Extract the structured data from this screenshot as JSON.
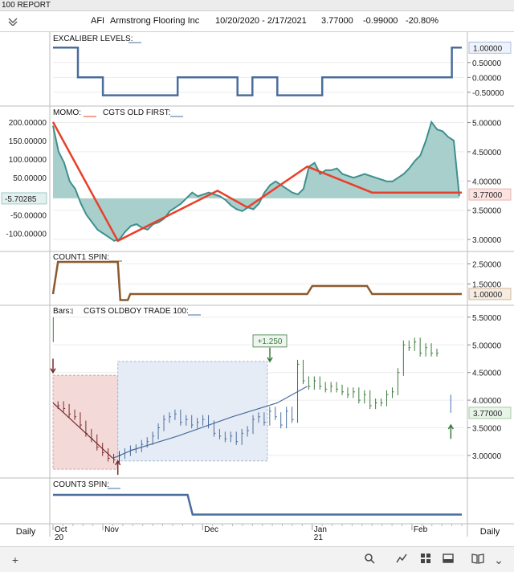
{
  "window": {
    "title": "100  REPORT"
  },
  "header": {
    "symbol": "AFI",
    "company": "Armstrong Flooring Inc",
    "date_range": "10/20/2020 - 2/17/2021",
    "price": "3.77000",
    "change": "-0.99000",
    "change_pct": "-20.80%"
  },
  "footer": {
    "left_label": "Daily",
    "right_label": "Daily",
    "icons": [
      "plus-icon",
      "search-icon",
      "line-chart-icon",
      "grid-icon",
      "panel-icon",
      "book-icon",
      "chevron-down-icon"
    ]
  },
  "colors": {
    "blue": "#4a6d9c",
    "red": "#e8402a",
    "teal": "#3f8f8c",
    "teal_fill": "#a9cfcc",
    "brown": "#8a5a2e",
    "green": "#3c7a3c",
    "dark_red": "#7a2b2b",
    "box_red": "#f4d9d9",
    "box_blue": "#e6ecf6"
  },
  "x_axis": {
    "months": [
      {
        "label": "Oct",
        "sub": "20",
        "x": 0
      },
      {
        "label": "Nov",
        "x": 10
      },
      {
        "label": "Dec",
        "x": 30
      },
      {
        "label": "Jan",
        "sub": "21",
        "x": 52
      },
      {
        "label": "Feb",
        "x": 72
      }
    ],
    "n": 82
  },
  "chart_data": [
    {
      "type": "line",
      "title": "EXCALIBER LEVELS:",
      "ylim": [
        -0.8,
        1.25
      ],
      "yticks": [
        {
          "v": 0.5,
          "t": "0.50000"
        },
        {
          "v": 0,
          "t": "0.00000"
        },
        {
          "v": -0.5,
          "t": "-0.50000"
        }
      ],
      "current": {
        "v": 1,
        "t": "1.00000"
      },
      "series": [
        {
          "x": [
            0,
            5,
            5,
            10,
            10,
            25,
            25,
            37,
            37,
            40,
            40,
            45,
            45,
            54,
            54,
            56,
            56,
            80,
            80,
            82
          ],
          "y": [
            1,
            1,
            0,
            0,
            -0.6,
            -0.6,
            0,
            0,
            -0.6,
            -0.6,
            0,
            0,
            -0.6,
            -0.6,
            0,
            0,
            0,
            0,
            1,
            1
          ]
        }
      ]
    },
    {
      "type": "area",
      "title": "MOMO:",
      "title2": "CGTS OLD FIRST:",
      "ylim": [
        -140,
        230
      ],
      "yticks_left": [
        {
          "v": 200,
          "t": "200.00000"
        },
        {
          "v": 150,
          "t": "150.00000"
        },
        {
          "v": 100,
          "t": "100.00000"
        },
        {
          "v": 50,
          "t": "50.00000"
        },
        {
          "v": -50,
          "t": "-50.00000"
        },
        {
          "v": -100,
          "t": "-100.00000"
        }
      ],
      "current_left": {
        "v": -5.70285,
        "t": "-5.70285"
      },
      "right_ylim": [
        2.85,
        5.2
      ],
      "yticks_right": [
        {
          "v": 5,
          "t": "5.00000"
        },
        {
          "v": 4.5,
          "t": "4.50000"
        },
        {
          "v": 4,
          "t": "4.00000"
        },
        {
          "v": 3.5,
          "t": "3.50000"
        },
        {
          "v": 3,
          "t": "3.00000"
        }
      ],
      "current_right": {
        "v": 3.77,
        "t": "3.77000"
      },
      "momo": [
        190,
        120,
        90,
        40,
        20,
        -20,
        -50,
        -70,
        -90,
        -100,
        -110,
        -120,
        -115,
        -95,
        -80,
        -75,
        -85,
        -90,
        -75,
        -70,
        -60,
        -40,
        -30,
        -20,
        -5,
        10,
        0,
        5,
        10,
        5,
        0,
        -10,
        -25,
        -35,
        -40,
        -30,
        -35,
        -20,
        10,
        30,
        40,
        30,
        20,
        10,
        5,
        20,
        80,
        90,
        60,
        70,
        70,
        75,
        60,
        55,
        50,
        55,
        60,
        55,
        50,
        45,
        40,
        40,
        50,
        60,
        75,
        95,
        110,
        150,
        200,
        180,
        175,
        160,
        150,
        0
      ],
      "old_first": {
        "x": [
          0,
          13,
          33,
          39,
          51,
          64,
          67,
          82
        ],
        "y": [
          200,
          -120,
          15,
          -30,
          80,
          10,
          10,
          10
        ]
      }
    },
    {
      "type": "line",
      "title": "COUNT1 SPIN:",
      "ylim": [
        0.6,
        2.8
      ],
      "yticks": [
        {
          "v": 2.5,
          "t": "2.50000"
        },
        {
          "v": 1.5,
          "t": "1.50000"
        }
      ],
      "current": {
        "v": 1,
        "t": "1.00000"
      },
      "series": [
        {
          "x": [
            0,
            1,
            13,
            13.5,
            15,
            15.5,
            51,
            52,
            63,
            64,
            82
          ],
          "y": [
            1,
            2.6,
            2.6,
            0.7,
            0.7,
            1,
            1,
            1.4,
            1.4,
            1,
            1
          ]
        }
      ]
    },
    {
      "type": "bar",
      "title": "Bars:",
      "title2": "CGTS OLDBOY TRADE 100:",
      "ylim": [
        2.65,
        5.6
      ],
      "yticks": [
        {
          "v": 5.5,
          "t": "5.50000"
        },
        {
          "v": 5,
          "t": "5.00000"
        },
        {
          "v": 4.5,
          "t": "4.50000"
        },
        {
          "v": 4,
          "t": "4.00000"
        },
        {
          "v": 3.5,
          "t": "3.50000"
        },
        {
          "v": 3,
          "t": "3.00000"
        }
      ],
      "current": {
        "v": 3.77,
        "t": "3.77000"
      },
      "trade_label": "+1.250",
      "closes": [
        3.9,
        3.85,
        3.75,
        3.7,
        3.55,
        3.4,
        3.3,
        3.15,
        3.05,
        2.95,
        2.92,
        3.0,
        3.05,
        3.1,
        3.12,
        3.2,
        3.25,
        3.35,
        3.5,
        3.65,
        3.7,
        3.75,
        3.6,
        3.65,
        3.55,
        3.6,
        3.65,
        3.55,
        3.4,
        3.35,
        3.3,
        3.35,
        3.25,
        3.4,
        3.45,
        3.65,
        3.7,
        3.6,
        3.8,
        3.7,
        3.55,
        3.8,
        3.65,
        4.65,
        4.35,
        4.25,
        4.35,
        4.25,
        4.2,
        4.25,
        4.2,
        4.15,
        4.1,
        4.15,
        4.0,
        4.1,
        3.9,
        3.95,
        3.95,
        4.1,
        4.15,
        4.5,
        5.0,
        4.95,
        5.05,
        4.85,
        4.95,
        4.85,
        4.85
      ],
      "leader": {
        "x": [
          0,
          12,
          16,
          25,
          36,
          45,
          51
        ],
        "y": [
          3.95,
          2.95,
          3.1,
          3.35,
          3.7,
          3.95,
          4.25
        ]
      }
    },
    {
      "type": "line",
      "title": "COUNT3 SPIN:",
      "ylim": [
        0,
        1
      ],
      "series": [
        {
          "x": [
            0,
            27,
            28,
            82
          ],
          "y": [
            0.8,
            0.8,
            0.1,
            0.1
          ]
        }
      ]
    }
  ]
}
